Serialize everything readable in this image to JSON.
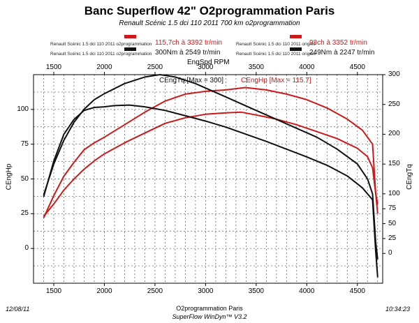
{
  "chart_data": {
    "type": "line",
    "title": "Banc Superflow 42\" O2programmation Paris",
    "subtitle": "Renault Scénic 1.5 dci 110 2011 700 km o2programmation",
    "xlabel": "EngSpd RPM",
    "ylabel_left": "CEngHp",
    "ylabel_right": "CEngTq",
    "xlim": [
      1300,
      4750
    ],
    "ylim_left": [
      -25,
      125
    ],
    "ylim_right": [
      -50,
      300
    ],
    "x_ticks": [
      1500,
      2000,
      2500,
      3000,
      3500,
      4000,
      4500
    ],
    "y_left_ticks": [
      0,
      25,
      50,
      75,
      100
    ],
    "y_right_ticks": [
      0,
      25,
      50,
      75,
      100,
      150,
      200,
      250,
      300
    ],
    "grid": true,
    "legend": [
      {
        "name": "Renault Scénic 1.5 dci 110 2011 o2programmation",
        "color": "#cc1a1a",
        "value": "115,7ch à 3392 tr/min"
      },
      {
        "name": "Renault Scénic 1.5 dci 110 2011 o2programmation",
        "color": "#111111",
        "value": "300Nm à 2549 tr/min"
      },
      {
        "name": "Renault Scénic 1.5 dci 110 2011 origine",
        "color": "#cc1a1a",
        "value": "98ch à 3352 tr/min"
      },
      {
        "name": "Renault Scénic 1.5 dci 110 2011 origine",
        "color": "#111111",
        "value": "249Nm à 2247 tr/min"
      }
    ],
    "annotations": {
      "torque_max": "CEngTq [Max = 300]",
      "power_max": "CEngHp [Max = 115.7]"
    },
    "series": [
      {
        "name": "Power o2programmation (CEngHp)",
        "axis": "left",
        "color": "#cc1a1a",
        "x": [
          1400,
          1500,
          1600,
          1700,
          1800,
          1900,
          2000,
          2200,
          2400,
          2500,
          2600,
          2800,
          3000,
          3200,
          3392,
          3600,
          3800,
          4000,
          4200,
          4400,
          4550,
          4650,
          4680,
          4700
        ],
        "y": [
          22,
          38,
          52,
          62,
          71,
          76,
          80,
          89,
          98,
          102,
          106,
          111,
          113,
          114,
          115.7,
          114,
          111,
          107,
          101,
          93,
          85,
          75,
          40,
          25
        ]
      },
      {
        "name": "Power origine (CEngHp)",
        "axis": "left",
        "color": "#cc1a1a",
        "x": [
          1400,
          1500,
          1600,
          1700,
          1800,
          1900,
          2000,
          2200,
          2400,
          2600,
          2800,
          3000,
          3200,
          3352,
          3500,
          3700,
          3900,
          4100,
          4300,
          4500,
          4600,
          4650,
          4680,
          4700
        ],
        "y": [
          23,
          32,
          42,
          50,
          57,
          63,
          68,
          76,
          83,
          90,
          94,
          96.5,
          97.5,
          98,
          96,
          93,
          89,
          84,
          79,
          72,
          66,
          58,
          40,
          32
        ]
      },
      {
        "name": "Torque o2programmation (CEngTq)",
        "axis": "right",
        "color": "#111111",
        "x": [
          1400,
          1500,
          1600,
          1700,
          1800,
          1900,
          2000,
          2200,
          2400,
          2549,
          2700,
          2900,
          3100,
          3300,
          3500,
          3700,
          3900,
          4100,
          4300,
          4500,
          4600,
          4650,
          4680,
          4700
        ],
        "y": [
          98,
          150,
          190,
          220,
          242,
          258,
          268,
          285,
          296,
          300,
          296,
          285,
          270,
          255,
          240,
          225,
          210,
          195,
          175,
          150,
          125,
          100,
          20,
          -10
        ]
      },
      {
        "name": "Torque origine (CEngTq)",
        "axis": "right",
        "color": "#111111",
        "x": [
          1400,
          1500,
          1600,
          1700,
          1800,
          1900,
          2000,
          2100,
          2247,
          2400,
          2600,
          2800,
          3000,
          3200,
          3400,
          3600,
          3800,
          4000,
          4200,
          4400,
          4550,
          4650,
          4680,
          4700
        ],
        "y": [
          95,
          155,
          200,
          225,
          240,
          245,
          246,
          248,
          249,
          246,
          240,
          231,
          222,
          212,
          200,
          188,
          175,
          162,
          148,
          130,
          110,
          90,
          5,
          -40
        ]
      }
    ]
  },
  "footer": {
    "date": "12/08/11",
    "line1": "O2programmation Paris",
    "line2": "SuperFlow WinDyn™ V3.2",
    "time": "10:34:23"
  }
}
